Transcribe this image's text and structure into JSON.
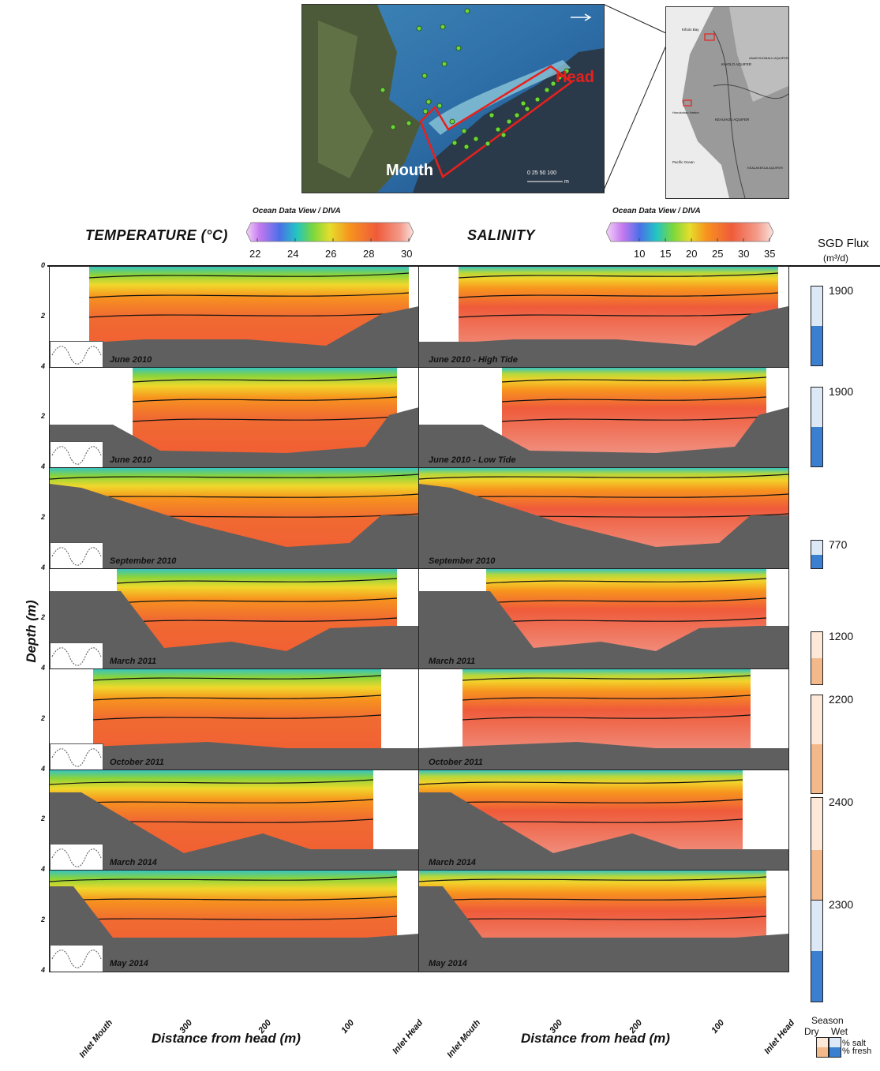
{
  "map": {
    "head_label": "Head",
    "mouth_label": "Mouth",
    "scale_label": "0  25 50    100",
    "scale_unit": "m",
    "relief_labels": [
      "Kiholo Bay",
      "KIHOLO AQUIFER",
      "KEAUHOU AQUIFER",
      "ANAEHOOMALU AQUIFER",
      "Pacific Ocean",
      "Honokohau Harbor",
      "KEALAKEKUA AQUIFER"
    ]
  },
  "temperature": {
    "title": "TEMPERATURE (°C)",
    "colorbar_title": "Ocean Data View / DIVA",
    "ticks": [
      "22",
      "24",
      "26",
      "28",
      "30"
    ]
  },
  "salinity": {
    "title": "SALINITY",
    "colorbar_title": "Ocean Data View / DIVA",
    "ticks": [
      "10",
      "15",
      "20",
      "25",
      "30",
      "35"
    ]
  },
  "flux": {
    "title": "SGD Flux",
    "unit": "(m³/d)",
    "rows": [
      {
        "value": "1900",
        "season": "wet",
        "fresh_fraction": 0.5
      },
      {
        "value": "1900",
        "season": "wet",
        "fresh_fraction": 0.5
      },
      {
        "value": "770",
        "season": "wet",
        "fresh_fraction": 0.5
      },
      {
        "value": "1200",
        "season": "dry",
        "fresh_fraction": 0.5
      },
      {
        "value": "2200",
        "season": "dry",
        "fresh_fraction": 0.5
      },
      {
        "value": "2400",
        "season": "dry",
        "fresh_fraction": 0.5
      },
      {
        "value": "2300",
        "season": "wet",
        "fresh_fraction": 0.5
      }
    ]
  },
  "rows": [
    {
      "temp_label": "June 2010",
      "sal_label": "June 2010 - High Tide"
    },
    {
      "temp_label": "June 2010",
      "sal_label": "June 2010 - Low Tide"
    },
    {
      "temp_label": "September 2010",
      "sal_label": "September 2010"
    },
    {
      "temp_label": "March 2011",
      "sal_label": "March 2011"
    },
    {
      "temp_label": "October 2011",
      "sal_label": "October 2011"
    },
    {
      "temp_label": "March 2014",
      "sal_label": "March 2014"
    },
    {
      "temp_label": "May 2014",
      "sal_label": "May 2014"
    }
  ],
  "yaxis": {
    "title": "Depth (m)",
    "ticks": [
      "0",
      "2",
      "4"
    ]
  },
  "xaxis": {
    "title": "Distance from head (m)",
    "ticks": [
      "Inlet Mouth",
      "300",
      "200",
      "100",
      "Inlet Head"
    ]
  },
  "legend": {
    "title": "Season",
    "dry": "Dry",
    "wet": "Wet",
    "salt": "% salt",
    "fresh": "% fresh"
  },
  "colors": {
    "wet_fresh": "#3b7fd0",
    "wet_salt": "#dce8f5",
    "dry_fresh": "#f4b98a",
    "dry_salt": "#fde8d8",
    "seafloor": "#5f5f5f",
    "map_box": "#e8201c"
  }
}
